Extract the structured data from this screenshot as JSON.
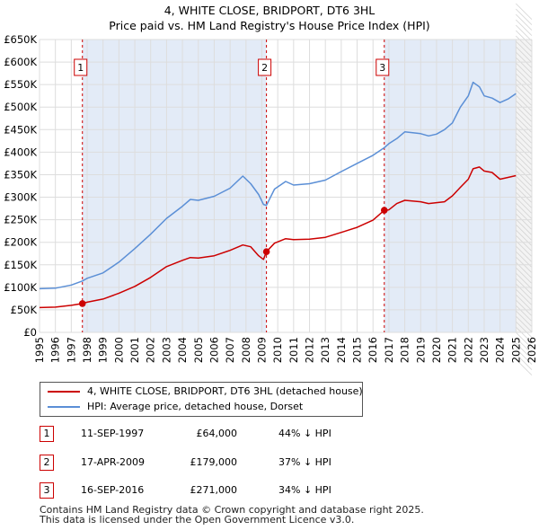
{
  "header": {
    "title": "4, WHITE CLOSE, BRIDPORT, DT6 3HL",
    "subtitle": "Price paid vs. HM Land Registry's House Price Index (HPI)"
  },
  "colors": {
    "property": "#cc0000",
    "hpi": "#5b8fd6",
    "band": "#e3ebf7",
    "grid": "#dddddd"
  },
  "chart_data": {
    "type": "line",
    "title": "4, WHITE CLOSE, BRIDPORT, DT6 3HL",
    "subtitle": "Price paid vs. HM Land Registry's House Price Index (HPI)",
    "xlabel": "",
    "ylabel": "",
    "xlim": [
      1995,
      2026
    ],
    "ylim": [
      0,
      650000
    ],
    "grid": true,
    "y_ticks": [
      0,
      50000,
      100000,
      150000,
      200000,
      250000,
      300000,
      350000,
      400000,
      450000,
      500000,
      550000,
      600000,
      650000
    ],
    "y_tick_labels": [
      "£0",
      "£50K",
      "£100K",
      "£150K",
      "£200K",
      "£250K",
      "£300K",
      "£350K",
      "£400K",
      "£450K",
      "£500K",
      "£550K",
      "£600K",
      "£650K"
    ],
    "x_ticks": [
      1995,
      1996,
      1997,
      1998,
      1999,
      2000,
      2001,
      2002,
      2003,
      2004,
      2005,
      2006,
      2007,
      2008,
      2009,
      2010,
      2011,
      2012,
      2013,
      2014,
      2015,
      2016,
      2017,
      2018,
      2019,
      2020,
      2021,
      2022,
      2023,
      2024,
      2025,
      2026
    ],
    "x_tick_labels": [
      "1995",
      "1996",
      "1997",
      "1998",
      "1999",
      "2000",
      "2001",
      "2002",
      "2003",
      "2004",
      "2005",
      "2006",
      "2007",
      "2008",
      "2009",
      "2010",
      "2011",
      "2012",
      "2013",
      "2014",
      "2015",
      "2016",
      "2017",
      "2018",
      "2019",
      "2020",
      "2021",
      "2022",
      "2023",
      "2024",
      "2025",
      "2026"
    ],
    "future_start": 2025.0,
    "shaded_periods": [
      [
        1997.7,
        2009.29
      ],
      [
        2016.71,
        2025.0
      ]
    ],
    "series": [
      {
        "name": "4, WHITE CLOSE, BRIDPORT, DT6 3HL (detached house)",
        "color": "#cc0000",
        "x": [
          1995.0,
          1996.0,
          1997.0,
          1997.7,
          1998.0,
          1999.0,
          2000.0,
          2001.0,
          2002.0,
          2003.0,
          2004.0,
          2004.5,
          2005.0,
          2006.0,
          2007.0,
          2007.8,
          2008.3,
          2008.8,
          2009.1,
          2009.29,
          2009.8,
          2010.5,
          2011.0,
          2012.0,
          2013.0,
          2014.0,
          2015.0,
          2016.0,
          2016.71,
          2017.0,
          2017.5,
          2018.0,
          2019.0,
          2019.5,
          2020.0,
          2020.5,
          2021.0,
          2021.5,
          2022.0,
          2022.3,
          2022.7,
          2023.0,
          2023.5,
          2024.0,
          2024.5,
          2025.0
        ],
        "values": [
          55000,
          56000,
          60000,
          64000,
          67000,
          74000,
          87000,
          102000,
          122000,
          146000,
          160000,
          166000,
          165000,
          170000,
          182000,
          194000,
          190000,
          170000,
          162000,
          179000,
          198000,
          208000,
          206000,
          207000,
          211000,
          222000,
          233000,
          249000,
          271000,
          272000,
          286000,
          293000,
          290000,
          286000,
          288000,
          290000,
          303000,
          322000,
          340000,
          363000,
          367000,
          358000,
          355000,
          340000,
          344000,
          348000
        ]
      },
      {
        "name": "HPI: Average price, detached house, Dorset",
        "color": "#5b8fd6",
        "x": [
          1995.0,
          1996.0,
          1997.0,
          1997.7,
          1998.0,
          1999.0,
          2000.0,
          2001.0,
          2002.0,
          2003.0,
          2004.0,
          2004.5,
          2005.0,
          2006.0,
          2007.0,
          2007.8,
          2008.3,
          2008.8,
          2009.1,
          2009.29,
          2009.8,
          2010.5,
          2011.0,
          2012.0,
          2013.0,
          2014.0,
          2015.0,
          2016.0,
          2016.71,
          2017.0,
          2017.5,
          2018.0,
          2019.0,
          2019.5,
          2020.0,
          2020.5,
          2021.0,
          2021.5,
          2022.0,
          2022.3,
          2022.7,
          2023.0,
          2023.5,
          2024.0,
          2024.5,
          2025.0
        ],
        "values": [
          97000,
          98000,
          105000,
          114000,
          120000,
          132000,
          156000,
          186000,
          218000,
          253000,
          280000,
          295000,
          293000,
          302000,
          320000,
          347000,
          330000,
          306000,
          284000,
          282000,
          318000,
          335000,
          327000,
          330000,
          338000,
          357000,
          375000,
          393000,
          410000,
          419000,
          430000,
          445000,
          441000,
          436000,
          440000,
          450000,
          465000,
          500000,
          525000,
          555000,
          545000,
          525000,
          520000,
          510000,
          518000,
          530000
        ]
      }
    ],
    "sales": [
      {
        "id": "1",
        "x": 1997.7,
        "value": 64000
      },
      {
        "id": "2",
        "x": 2009.29,
        "value": 179000
      },
      {
        "id": "3",
        "x": 2016.71,
        "value": 271000
      }
    ]
  },
  "legend": {
    "items": [
      {
        "label": "4, WHITE CLOSE, BRIDPORT, DT6 3HL (detached house)"
      },
      {
        "label": "HPI: Average price, detached house, Dorset"
      }
    ]
  },
  "sales_table": [
    {
      "id": "1",
      "date": "11-SEP-1997",
      "price": "£64,000",
      "diff": "44% ↓ HPI"
    },
    {
      "id": "2",
      "date": "17-APR-2009",
      "price": "£179,000",
      "diff": "37% ↓ HPI"
    },
    {
      "id": "3",
      "date": "16-SEP-2016",
      "price": "£271,000",
      "diff": "34% ↓ HPI"
    }
  ],
  "footer": {
    "line1": "Contains HM Land Registry data © Crown copyright and database right 2025.",
    "line2": "This data is licensed under the Open Government Licence v3.0."
  }
}
